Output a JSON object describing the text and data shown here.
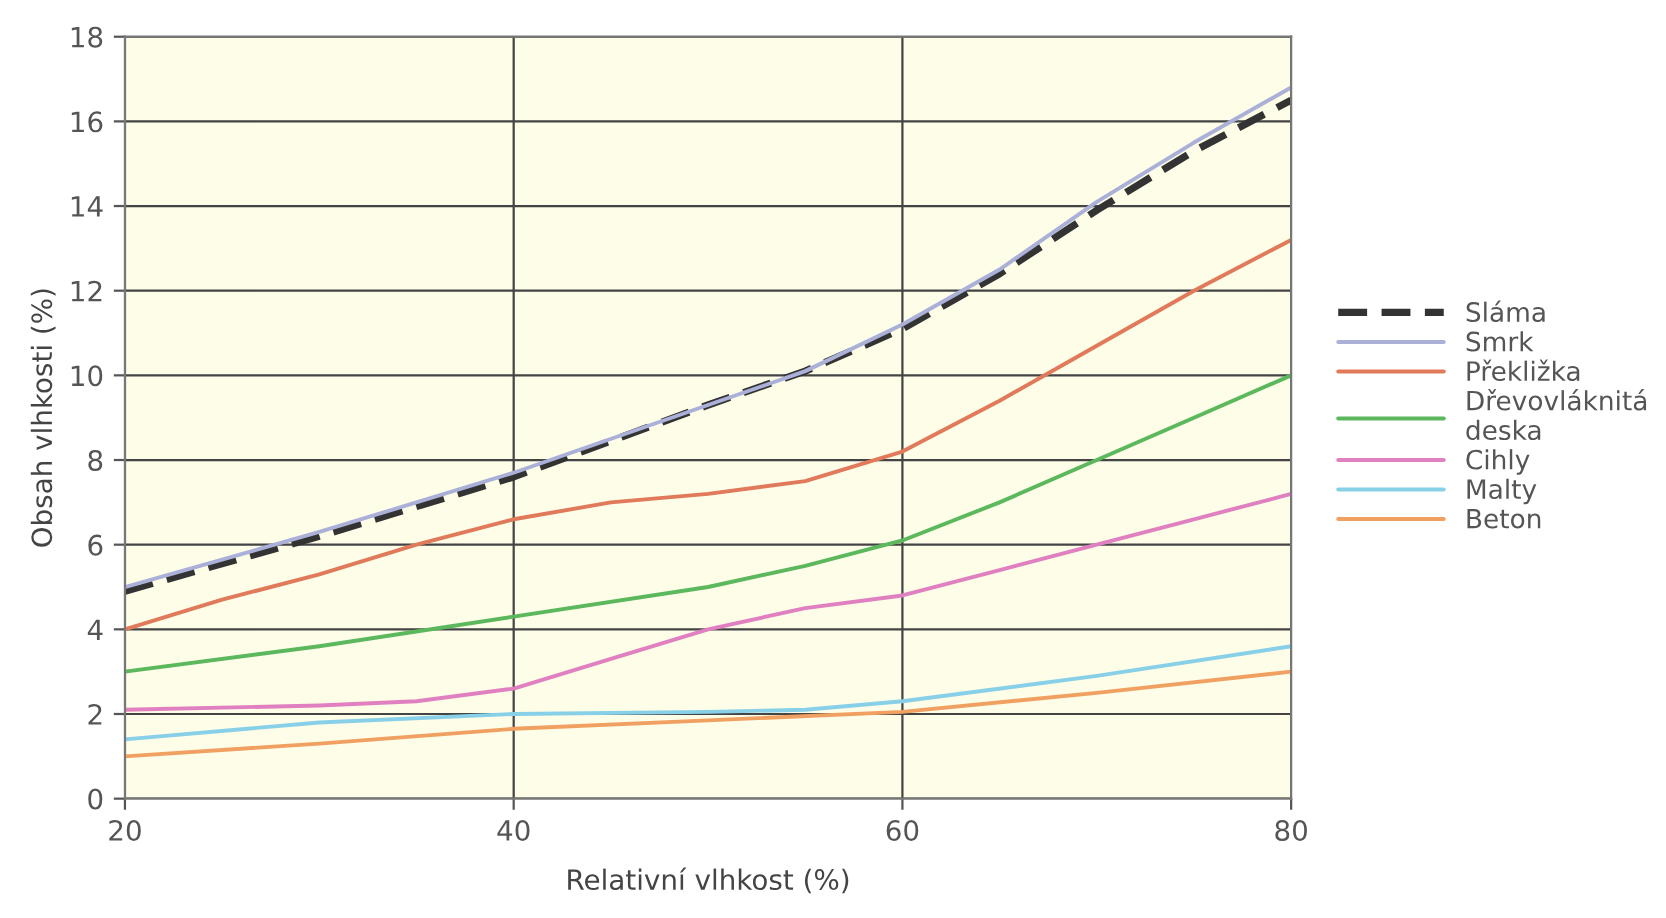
{
  "chart_data": {
    "type": "line",
    "xlabel": "Relativní vlhkost (%)",
    "ylabel": "Obsah vlhkosti (%)",
    "xlim": [
      20,
      80
    ],
    "xticks": [
      20,
      40,
      60,
      80
    ],
    "ylim": [
      0,
      18
    ],
    "yticks": [
      0,
      2,
      4,
      6,
      8,
      10,
      12,
      14,
      16,
      18
    ],
    "grid": true,
    "legend": "right",
    "marker": "none",
    "series": [
      {
        "name": "Sláma",
        "color": "#333333",
        "line_style": "dashed",
        "x": [
          20,
          30,
          40,
          50,
          55,
          60,
          65,
          70,
          75,
          80
        ],
        "values": [
          4.9,
          6.2,
          7.6,
          9.3,
          10.1,
          11.1,
          12.4,
          13.9,
          15.3,
          16.5
        ]
      },
      {
        "name": "Smrk",
        "color": "#aab0d8",
        "line_style": "solid",
        "x": [
          20,
          30,
          40,
          50,
          55,
          60,
          65,
          70,
          75,
          80
        ],
        "values": [
          5.0,
          6.3,
          7.7,
          9.3,
          10.1,
          11.2,
          12.5,
          14.1,
          15.5,
          16.8
        ]
      },
      {
        "name": "Překližka",
        "color": "#e07a5a",
        "line_style": "solid",
        "x": [
          20,
          25,
          30,
          35,
          40,
          45,
          50,
          55,
          60,
          65,
          70,
          75,
          80
        ],
        "values": [
          4.0,
          4.7,
          5.3,
          6.0,
          6.6,
          7.0,
          7.2,
          7.5,
          8.2,
          9.4,
          10.7,
          12.0,
          13.2
        ]
      },
      {
        "name": "Dřevovláknitá\ndeska",
        "color": "#5cb85c",
        "line_style": "solid",
        "x": [
          20,
          30,
          40,
          50,
          55,
          60,
          65,
          70,
          75,
          80
        ],
        "values": [
          3.0,
          3.6,
          4.3,
          5.0,
          5.5,
          6.1,
          7.0,
          8.0,
          9.0,
          10.0
        ]
      },
      {
        "name": "Cihly",
        "color": "#e080c0",
        "line_style": "solid",
        "x": [
          20,
          30,
          35,
          40,
          45,
          50,
          55,
          60,
          65,
          70,
          75,
          80
        ],
        "values": [
          2.1,
          2.2,
          2.3,
          2.6,
          3.3,
          4.0,
          4.5,
          4.8,
          5.4,
          6.0,
          6.6,
          7.2
        ]
      },
      {
        "name": "Malty",
        "color": "#88d0e8",
        "line_style": "solid",
        "x": [
          20,
          30,
          40,
          50,
          55,
          60,
          70,
          80
        ],
        "values": [
          1.4,
          1.8,
          2.0,
          2.05,
          2.1,
          2.3,
          2.9,
          3.6
        ]
      },
      {
        "name": "Beton",
        "color": "#f0a060",
        "line_style": "solid",
        "x": [
          20,
          30,
          40,
          50,
          60,
          70,
          80
        ],
        "values": [
          1.0,
          1.3,
          1.65,
          1.85,
          2.05,
          2.5,
          3.0
        ]
      }
    ]
  }
}
